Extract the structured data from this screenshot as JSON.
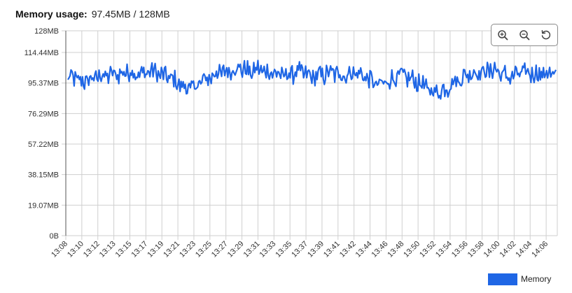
{
  "header": {
    "label": "Memory usage:",
    "value": "97.45MB / 128MB"
  },
  "toolbar": {
    "buttons": [
      "zoom-in-icon",
      "zoom-out-icon",
      "reset-zoom-icon"
    ]
  },
  "colors": {
    "series": "#1f66e5",
    "grid": "#cfcfcf",
    "axis": "#555555",
    "toolbar_border": "#8a8a8a"
  },
  "chart_data": {
    "type": "line",
    "title": "",
    "xlabel": "",
    "ylabel": "",
    "ylim": [
      0,
      128
    ],
    "y_unit": "MB",
    "y_ticks": [
      {
        "value": 0,
        "label": "0B"
      },
      {
        "value": 19.07,
        "label": "19.07MB"
      },
      {
        "value": 38.15,
        "label": "38.15MB"
      },
      {
        "value": 57.22,
        "label": "57.22MB"
      },
      {
        "value": 76.29,
        "label": "76.29MB"
      },
      {
        "value": 95.37,
        "label": "95.37MB"
      },
      {
        "value": 114.44,
        "label": "114.44MB"
      },
      {
        "value": 128,
        "label": "128MB"
      }
    ],
    "x_ticks": [
      "13:08",
      "13:10",
      "13:12",
      "13:13",
      "13:15",
      "13:17",
      "13:19",
      "13:21",
      "13:23",
      "13:25",
      "13:27",
      "13:29",
      "13:31",
      "13:33",
      "13:35",
      "13:37",
      "13:39",
      "13:41",
      "13:42",
      "13:44",
      "13:46",
      "13:48",
      "13:50",
      "13:52",
      "13:54",
      "13:56",
      "13:58",
      "14:00",
      "14:02",
      "14:04",
      "14:06"
    ],
    "grid": true,
    "legend_position": "bottom-right",
    "series": [
      {
        "name": "Memory",
        "x_start": "13:08",
        "x_end": "14:07",
        "anchors": [
          [
            0,
            98
          ],
          [
            1,
            99
          ],
          [
            2,
            96
          ],
          [
            3,
            97
          ],
          [
            4,
            99
          ],
          [
            5,
            100
          ],
          [
            6,
            100
          ],
          [
            7,
            101
          ],
          [
            8,
            101
          ],
          [
            9,
            103
          ],
          [
            10,
            101
          ],
          [
            11,
            101
          ],
          [
            12,
            103
          ],
          [
            13,
            102
          ],
          [
            14,
            100
          ],
          [
            15,
            99
          ],
          [
            16,
            96
          ],
          [
            17,
            93
          ],
          [
            18,
            92
          ],
          [
            19,
            94
          ],
          [
            20,
            97
          ],
          [
            21,
            99
          ],
          [
            22,
            102
          ],
          [
            23,
            102
          ],
          [
            24,
            103
          ],
          [
            25,
            105
          ],
          [
            26,
            104
          ],
          [
            27,
            102
          ],
          [
            28,
            104
          ],
          [
            29,
            103
          ],
          [
            30,
            102
          ],
          [
            31,
            101
          ],
          [
            32,
            100
          ],
          [
            33,
            101
          ],
          [
            34,
            103
          ],
          [
            35,
            101
          ],
          [
            36,
            99
          ],
          [
            37,
            100
          ],
          [
            38,
            101
          ],
          [
            39,
            102
          ],
          [
            40,
            101
          ],
          [
            41,
            100
          ],
          [
            42,
            102
          ],
          [
            43,
            101
          ],
          [
            44,
            99
          ],
          [
            45,
            96
          ],
          [
            46,
            94
          ],
          [
            47,
            96
          ],
          [
            48,
            98
          ],
          [
            49,
            100
          ],
          [
            50,
            99
          ],
          [
            51,
            97
          ],
          [
            52,
            95
          ],
          [
            53,
            92
          ],
          [
            54,
            90
          ],
          [
            55,
            90
          ],
          [
            56,
            93
          ],
          [
            57,
            96
          ],
          [
            58,
            98
          ],
          [
            59,
            101
          ],
          [
            60,
            102
          ],
          [
            61,
            102
          ],
          [
            62,
            103
          ],
          [
            63,
            104
          ],
          [
            64,
            101
          ],
          [
            65,
            99
          ],
          [
            66,
            100
          ],
          [
            67,
            102
          ],
          [
            68,
            102
          ],
          [
            69,
            101
          ],
          [
            70,
            101
          ],
          [
            71,
            102
          ],
          [
            72,
            99
          ]
        ],
        "amplitude": 6
      }
    ]
  }
}
